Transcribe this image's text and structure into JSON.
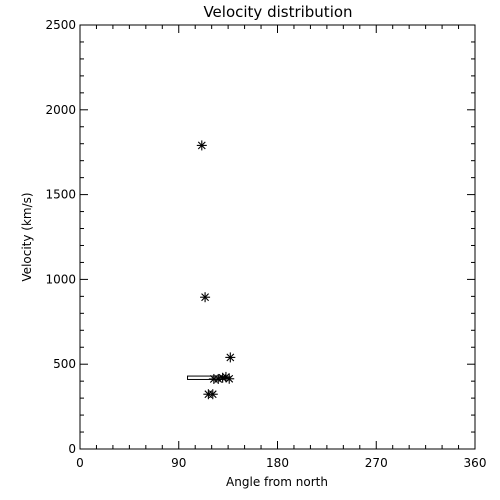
{
  "chart_data": {
    "type": "scatter",
    "title": "Velocity distribution",
    "xlabel": "Angle from north",
    "ylabel": "Velocity (km/s)",
    "xlim": [
      0,
      360
    ],
    "ylim": [
      0,
      2500
    ],
    "xticks": [
      "0",
      "90",
      "180",
      "270",
      "360"
    ],
    "yticks": [
      "0",
      "500",
      "1000",
      "1500",
      "2000",
      "2500"
    ],
    "marker": "asterisk",
    "grid": false,
    "points": [
      {
        "x": 111,
        "y": 1790
      },
      {
        "x": 114,
        "y": 895
      },
      {
        "x": 137,
        "y": 540
      },
      {
        "x": 122,
        "y": 413
      },
      {
        "x": 126,
        "y": 413
      },
      {
        "x": 130,
        "y": 420
      },
      {
        "x": 133,
        "y": 425
      },
      {
        "x": 136,
        "y": 414
      },
      {
        "x": 117,
        "y": 323
      },
      {
        "x": 121,
        "y": 323
      }
    ],
    "shapes": [
      {
        "type": "rect",
        "x0": 98,
        "x1": 130,
        "y0": 410,
        "y1": 430
      }
    ]
  }
}
